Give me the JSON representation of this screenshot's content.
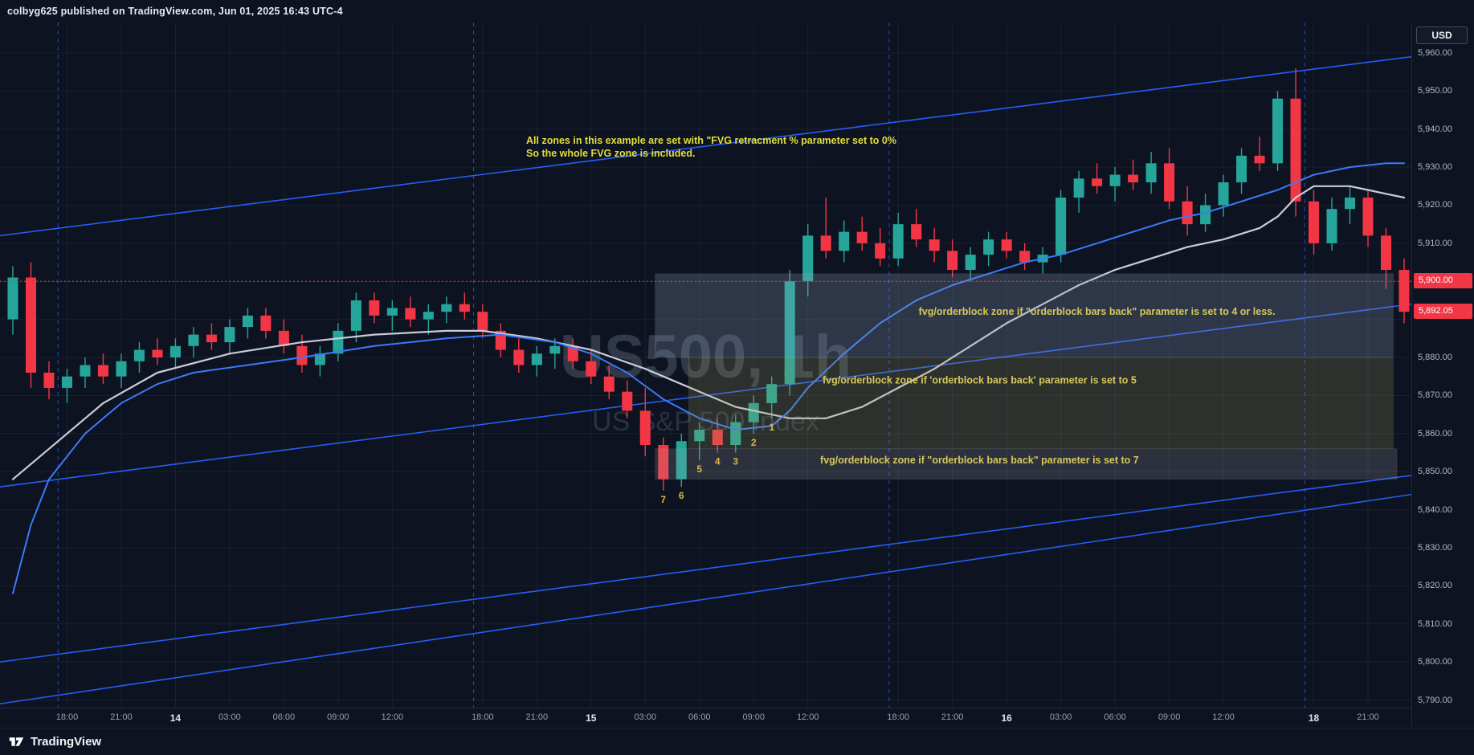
{
  "meta": {
    "attribution": "colbyg625 published on TradingView.com, Jun 01, 2025 16:43 UTC-4"
  },
  "header": {
    "currency_button": "USD"
  },
  "footer": {
    "brand": "TradingView"
  },
  "watermark": {
    "line1": "US500, 1h",
    "line2": "US S&P 500 Index"
  },
  "annotation": {
    "line1": "All zones in this example are set with \"FVG retracment % parameter set to 0%",
    "line2": "So the whole FVG zone is included.",
    "color": "#e2df3a"
  },
  "chart_data": {
    "type": "candlestick",
    "symbol": "US500",
    "timeframe": "1h",
    "description": "US S&P 500 Index",
    "current_price": 5892.05,
    "colors": {
      "bg": "#0d1321",
      "up": "#26a69a",
      "down": "#f23645",
      "grid": "rgba(151,166,195,0.09)",
      "trend": "#2962ff",
      "watermark1": "rgba(158,170,192,0.25)",
      "watermark2": "rgba(158,170,192,0.20)",
      "zone_label": "#d6c85a",
      "number_label": "#d4b945",
      "tag_bg": "#f23645"
    },
    "price_axis": {
      "view_min": 5788,
      "view_max": 5968,
      "tick_step": 10,
      "grid_from": 5790,
      "grid_to": 5960,
      "ticks": [
        {
          "price": 5960,
          "label": "5,960.00"
        },
        {
          "price": 5950,
          "label": "5,950.00"
        },
        {
          "price": 5940,
          "label": "5,940.00"
        },
        {
          "price": 5930,
          "label": "5,930.00"
        },
        {
          "price": 5920,
          "label": "5,920.00"
        },
        {
          "price": 5910,
          "label": "5,910.00"
        },
        {
          "price": 5880,
          "label": "5,880.00"
        },
        {
          "price": 5870,
          "label": "5,870.00"
        },
        {
          "price": 5860,
          "label": "5,860.00"
        },
        {
          "price": 5850,
          "label": "5,850.00"
        },
        {
          "price": 5840,
          "label": "5,840.00"
        },
        {
          "price": 5830,
          "label": "5,830.00"
        },
        {
          "price": 5820,
          "label": "5,820.00"
        },
        {
          "price": 5810,
          "label": "5,810.00"
        },
        {
          "price": 5800,
          "label": "5,800.00"
        },
        {
          "price": 5790,
          "label": "5,790.00"
        }
      ],
      "tags": [
        {
          "price": 5900,
          "label": "5,900.00",
          "name": "alert-price-tag"
        },
        {
          "price": 5892.05,
          "label": "5,892.05",
          "name": "current-price-tag"
        }
      ]
    },
    "time_axis": {
      "ticks": [
        {
          "bar": 3,
          "label": "18:00"
        },
        {
          "bar": 6,
          "label": "21:00"
        },
        {
          "bar": 9,
          "label": "14",
          "day": true
        },
        {
          "bar": 12,
          "label": "03:00"
        },
        {
          "bar": 15,
          "label": "06:00"
        },
        {
          "bar": 18,
          "label": "09:00"
        },
        {
          "bar": 21,
          "label": "12:00"
        },
        {
          "bar": 26,
          "label": "18:00"
        },
        {
          "bar": 29,
          "label": "21:00"
        },
        {
          "bar": 32,
          "label": "15",
          "day": true
        },
        {
          "bar": 35,
          "label": "03:00"
        },
        {
          "bar": 38,
          "label": "06:00"
        },
        {
          "bar": 41,
          "label": "09:00"
        },
        {
          "bar": 44,
          "label": "12:00"
        },
        {
          "bar": 49,
          "label": "18:00"
        },
        {
          "bar": 52,
          "label": "21:00"
        },
        {
          "bar": 55,
          "label": "16",
          "day": true
        },
        {
          "bar": 58,
          "label": "03:00"
        },
        {
          "bar": 61,
          "label": "06:00"
        },
        {
          "bar": 64,
          "label": "09:00"
        },
        {
          "bar": 67,
          "label": "12:00"
        },
        {
          "bar": 72,
          "label": "18",
          "day": true
        },
        {
          "bar": 75,
          "label": "21:00"
        }
      ]
    },
    "session_breaks": [
      2.5,
      25.5,
      48.5,
      71.5
    ],
    "alert_line": {
      "price": 5900,
      "style": "dotted"
    },
    "candles_ohlc": [
      [
        5890,
        5904,
        5886,
        5901
      ],
      [
        5901,
        5905,
        5872,
        5876
      ],
      [
        5876,
        5879,
        5869,
        5872
      ],
      [
        5872,
        5877,
        5868,
        5875
      ],
      [
        5875,
        5880,
        5872,
        5878
      ],
      [
        5878,
        5881,
        5873,
        5875
      ],
      [
        5875,
        5881,
        5872,
        5879
      ],
      [
        5879,
        5884,
        5876,
        5882
      ],
      [
        5882,
        5885,
        5878,
        5880
      ],
      [
        5880,
        5885,
        5877,
        5883
      ],
      [
        5883,
        5888,
        5880,
        5886
      ],
      [
        5886,
        5889,
        5882,
        5884
      ],
      [
        5884,
        5890,
        5881,
        5888
      ],
      [
        5888,
        5893,
        5885,
        5891
      ],
      [
        5891,
        5893,
        5885,
        5887
      ],
      [
        5887,
        5890,
        5881,
        5883
      ],
      [
        5883,
        5886,
        5876,
        5878
      ],
      [
        5878,
        5883,
        5875,
        5881
      ],
      [
        5881,
        5889,
        5879,
        5887
      ],
      [
        5887,
        5897,
        5884,
        5895
      ],
      [
        5895,
        5897,
        5889,
        5891
      ],
      [
        5891,
        5895,
        5887,
        5893
      ],
      [
        5893,
        5896,
        5888,
        5890
      ],
      [
        5890,
        5894,
        5886,
        5892
      ],
      [
        5892,
        5896,
        5889,
        5894
      ],
      [
        5894,
        5897,
        5890,
        5892
      ],
      [
        5892,
        5894,
        5885,
        5887
      ],
      [
        5887,
        5889,
        5880,
        5882
      ],
      [
        5882,
        5885,
        5876,
        5878
      ],
      [
        5878,
        5883,
        5875,
        5881
      ],
      [
        5881,
        5885,
        5877,
        5883
      ],
      [
        5883,
        5885,
        5877,
        5879
      ],
      [
        5879,
        5882,
        5873,
        5875
      ],
      [
        5875,
        5878,
        5869,
        5871
      ],
      [
        5871,
        5874,
        5864,
        5866
      ],
      [
        5866,
        5872,
        5854,
        5857
      ],
      [
        5857,
        5859,
        5845,
        5848
      ],
      [
        5848,
        5860,
        5846,
        5858
      ],
      [
        5858,
        5863,
        5853,
        5861
      ],
      [
        5861,
        5864,
        5855,
        5857
      ],
      [
        5857,
        5865,
        5855,
        5863
      ],
      [
        5863,
        5870,
        5860,
        5868
      ],
      [
        5868,
        5875,
        5864,
        5873
      ],
      [
        5873,
        5903,
        5870,
        5900
      ],
      [
        5900,
        5915,
        5896,
        5912
      ],
      [
        5912,
        5922,
        5906,
        5908
      ],
      [
        5908,
        5916,
        5905,
        5913
      ],
      [
        5913,
        5917,
        5908,
        5910
      ],
      [
        5910,
        5914,
        5904,
        5906
      ],
      [
        5906,
        5918,
        5904,
        5915
      ],
      [
        5915,
        5919,
        5909,
        5911
      ],
      [
        5911,
        5914,
        5905,
        5908
      ],
      [
        5908,
        5911,
        5901,
        5903
      ],
      [
        5903,
        5909,
        5900,
        5907
      ],
      [
        5907,
        5913,
        5904,
        5911
      ],
      [
        5911,
        5913,
        5906,
        5908
      ],
      [
        5908,
        5910,
        5903,
        5905
      ],
      [
        5905,
        5909,
        5902,
        5907
      ],
      [
        5907,
        5924,
        5905,
        5922
      ],
      [
        5922,
        5929,
        5918,
        5927
      ],
      [
        5927,
        5931,
        5923,
        5925
      ],
      [
        5925,
        5930,
        5921,
        5928
      ],
      [
        5928,
        5932,
        5924,
        5926
      ],
      [
        5926,
        5934,
        5923,
        5931
      ],
      [
        5931,
        5935,
        5919,
        5921
      ],
      [
        5921,
        5925,
        5912,
        5915
      ],
      [
        5915,
        5923,
        5913,
        5920
      ],
      [
        5920,
        5928,
        5917,
        5926
      ],
      [
        5926,
        5935,
        5923,
        5933
      ],
      [
        5933,
        5938,
        5929,
        5931
      ],
      [
        5931,
        5950,
        5929,
        5948
      ],
      [
        5948,
        5956,
        5917,
        5921
      ],
      [
        5921,
        5924,
        5907,
        5910
      ],
      [
        5910,
        5922,
        5908,
        5919
      ],
      [
        5919,
        5925,
        5915,
        5922
      ],
      [
        5922,
        5924,
        5909,
        5912
      ],
      [
        5912,
        5914,
        5898,
        5903
      ],
      [
        5903,
        5906,
        5889,
        5892
      ]
    ],
    "trend_lines": [
      {
        "name": "channel-upper",
        "x1": 0,
        "p1": 5912,
        "x2": 1,
        "p2": 5959
      },
      {
        "name": "channel-mid",
        "x1": 0,
        "p1": 5846,
        "x2": 1,
        "p2": 5894
      },
      {
        "name": "channel-lower-a",
        "x1": 0,
        "p1": 5800,
        "x2": 1,
        "p2": 5849
      },
      {
        "name": "channel-lower-b",
        "x1": 0,
        "p1": 5789,
        "x2": 1,
        "p2": 5844
      }
    ],
    "ma_lines": [
      {
        "name": "white",
        "color": "#c9cdd6",
        "width": 2.2,
        "points": [
          [
            0,
            5848
          ],
          [
            2,
            5856
          ],
          [
            5,
            5868
          ],
          [
            8,
            5876
          ],
          [
            12,
            5881
          ],
          [
            16,
            5884
          ],
          [
            20,
            5886
          ],
          [
            24,
            5887
          ],
          [
            26,
            5887
          ],
          [
            29,
            5885
          ],
          [
            32,
            5882
          ],
          [
            35,
            5877
          ],
          [
            38,
            5871
          ],
          [
            40,
            5867
          ],
          [
            43,
            5864
          ],
          [
            45,
            5864
          ],
          [
            47,
            5867
          ],
          [
            49,
            5872
          ],
          [
            51,
            5877
          ],
          [
            53,
            5883
          ],
          [
            55,
            5889
          ],
          [
            57,
            5894
          ],
          [
            59,
            5899
          ],
          [
            61,
            5903
          ],
          [
            63,
            5906
          ],
          [
            65,
            5909
          ],
          [
            67,
            5911
          ],
          [
            69,
            5914
          ],
          [
            70,
            5917
          ],
          [
            71,
            5922
          ],
          [
            72,
            5925
          ],
          [
            74,
            5925
          ],
          [
            75,
            5924
          ],
          [
            76,
            5923
          ],
          [
            77,
            5922
          ]
        ]
      },
      {
        "name": "blue",
        "color": "#3b7af7",
        "width": 2,
        "points": [
          [
            0,
            5818
          ],
          [
            1,
            5836
          ],
          [
            2,
            5848
          ],
          [
            4,
            5860
          ],
          [
            6,
            5868
          ],
          [
            8,
            5873
          ],
          [
            10,
            5876
          ],
          [
            13,
            5878
          ],
          [
            16,
            5880
          ],
          [
            20,
            5883
          ],
          [
            24,
            5885
          ],
          [
            27,
            5886
          ],
          [
            30,
            5884
          ],
          [
            32,
            5881
          ],
          [
            34,
            5876
          ],
          [
            36,
            5869
          ],
          [
            38,
            5864
          ],
          [
            40,
            5861
          ],
          [
            42,
            5862
          ],
          [
            43,
            5866
          ],
          [
            44,
            5872
          ],
          [
            46,
            5881
          ],
          [
            48,
            5889
          ],
          [
            50,
            5895
          ],
          [
            52,
            5899
          ],
          [
            54,
            5902
          ],
          [
            56,
            5905
          ],
          [
            58,
            5907
          ],
          [
            60,
            5910
          ],
          [
            62,
            5913
          ],
          [
            64,
            5916
          ],
          [
            66,
            5918
          ],
          [
            68,
            5921
          ],
          [
            70,
            5924
          ],
          [
            72,
            5928
          ],
          [
            74,
            5930
          ],
          [
            76,
            5931
          ],
          [
            77,
            5931
          ]
        ]
      }
    ],
    "zones": [
      {
        "name": "zone-4-or-less",
        "bar_start": 35.55,
        "bar_end": 76.4,
        "price_top": 5902,
        "price_bottom": 5880,
        "fill": "rgba(140,160,185,0.26)",
        "label": "fvg/orderblock zone if \"orderblock bars back\" parameter is set to 4 or less.",
        "label_bar": 60,
        "label_price": 5892
      },
      {
        "name": "zone-5",
        "bar_start": 37.4,
        "bar_end": 76.4,
        "price_top": 5880,
        "price_bottom": 5856,
        "fill": "rgba(158,158,96,0.22)",
        "label": "fvg/orderblock zone if 'orderblock bars back' parameter is set to 5",
        "label_bar": 53.5,
        "label_price": 5874
      },
      {
        "name": "zone-7",
        "bar_start": 35.55,
        "bar_end": 76.6,
        "price_top": 5856,
        "price_bottom": 5848,
        "fill": "rgba(155,158,165,0.22)",
        "label": "fvg/orderblock zone if \"orderblock bars back\" parameter is set to 7",
        "label_bar": 53.5,
        "label_price": 5853
      }
    ],
    "bar_labels": [
      {
        "bar": 36,
        "text": "7"
      },
      {
        "bar": 37,
        "text": "6"
      },
      {
        "bar": 38,
        "text": "5"
      },
      {
        "bar": 39,
        "text": "4"
      },
      {
        "bar": 40,
        "text": "3"
      },
      {
        "bar": 41,
        "text": "2"
      },
      {
        "bar": 42,
        "text": "1"
      }
    ]
  }
}
